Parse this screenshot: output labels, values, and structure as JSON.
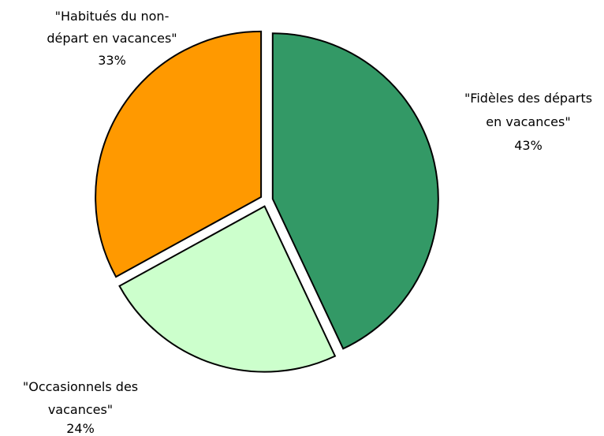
{
  "chart_data": {
    "type": "pie",
    "title": "",
    "slices": [
      {
        "label": "\"Fidèles des départs en vacances\"",
        "label_lines": [
          "\"Fidèles des départs",
          "en vacances\""
        ],
        "value": 43,
        "value_label": "43%",
        "color": "#339966"
      },
      {
        "label": "\"Occasionnels des vacances\"",
        "label_lines": [
          "\"Occasionnels des",
          "vacances\""
        ],
        "value": 24,
        "value_label": "24%",
        "color": "#ccffcc"
      },
      {
        "label": "\"Habitués du non-départ en vacances\"",
        "label_lines": [
          "\"Habitués du non-",
          "départ en vacances\""
        ],
        "value": 33,
        "value_label": "33%",
        "color": "#ff9900"
      }
    ],
    "start": "top",
    "direction": "clockwise",
    "exploded": true,
    "legend": "none"
  }
}
